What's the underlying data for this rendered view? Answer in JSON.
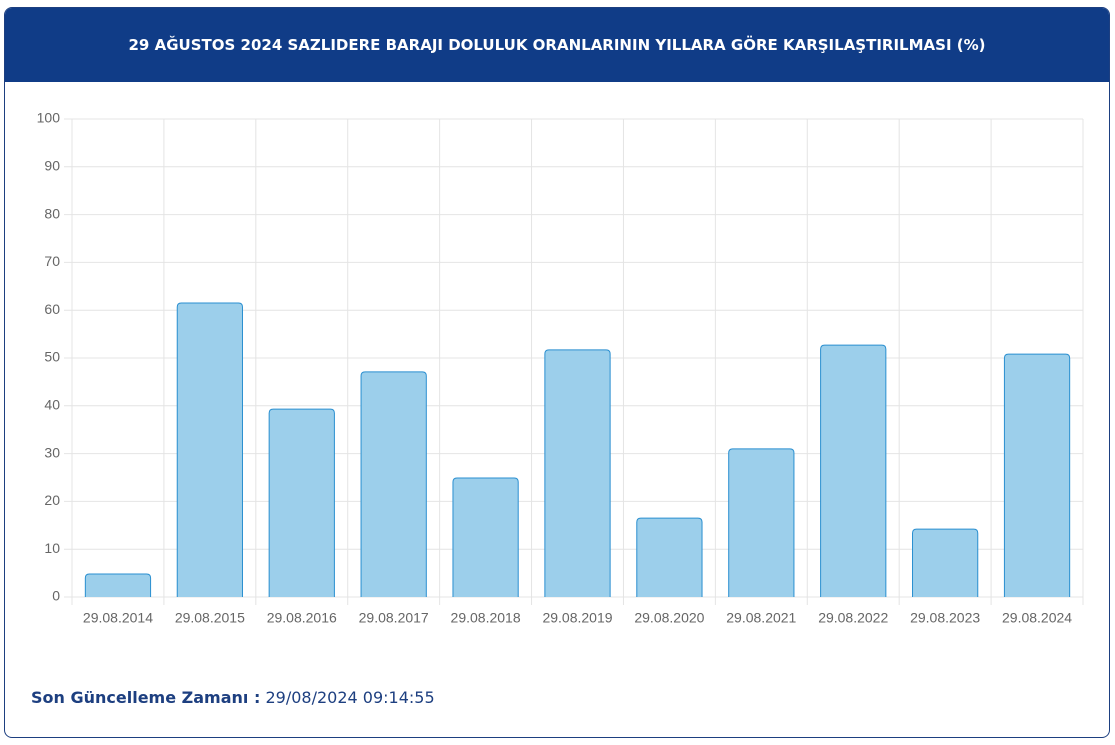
{
  "chart_data": {
    "type": "bar",
    "title": "29 AĞUSTOS 2024 SAZLIDERE BARAJI DOLULUK ORANLARININ YILLARA GÖRE KARŞILAŞTIRILMASI (%)",
    "categories": [
      "29.08.2014",
      "29.08.2015",
      "29.08.2016",
      "29.08.2017",
      "29.08.2018",
      "29.08.2019",
      "29.08.2020",
      "29.08.2021",
      "29.08.2022",
      "29.08.2023",
      "29.08.2024"
    ],
    "values": [
      4.8,
      61.5,
      39.3,
      47.1,
      24.9,
      51.7,
      16.5,
      31.0,
      52.7,
      14.2,
      50.8
    ],
    "color": "#9ccfeb",
    "border_color": "#2a8fd0",
    "ylim": [
      0,
      100
    ],
    "yticks": [
      0,
      10,
      20,
      30,
      40,
      50,
      60,
      70,
      80,
      90,
      100
    ],
    "grid": true
  },
  "footer": {
    "label": "Son Güncelleme Zamanı :",
    "value": "29/08/2024 09:14:55"
  }
}
